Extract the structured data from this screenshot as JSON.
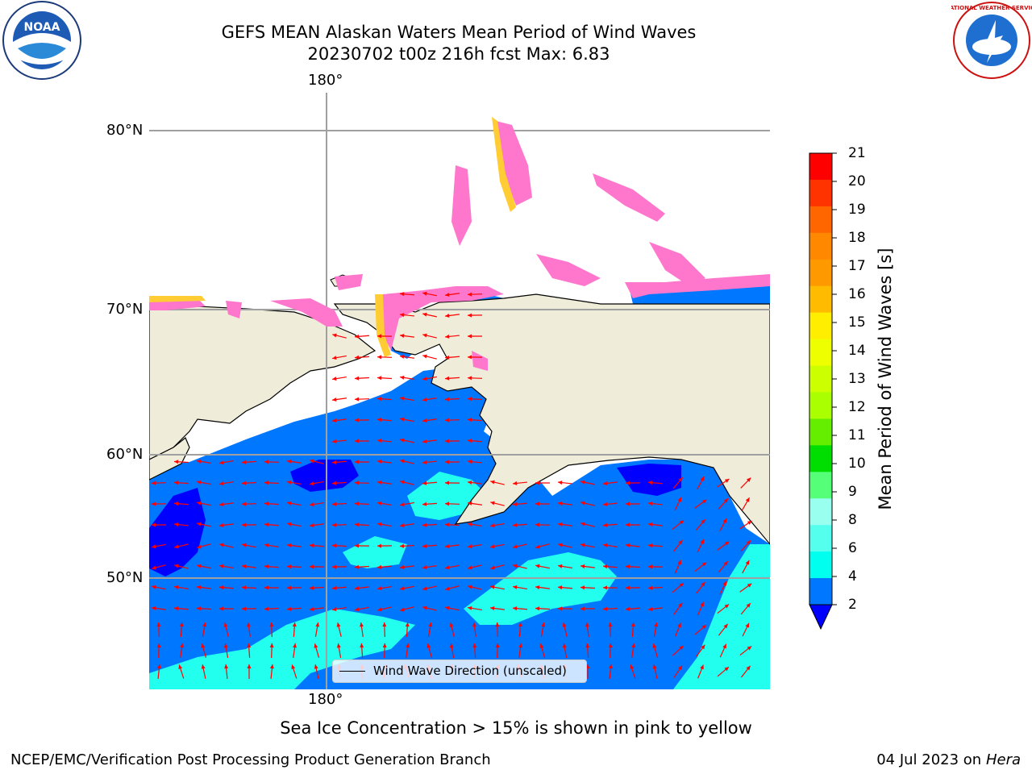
{
  "title": {
    "line1": "GEFS MEAN Alaskan Waters Mean Period of Wind Waves",
    "line2": "20230702 t00z 216h fcst   Max: 6.83"
  },
  "axes": {
    "top_lon_label": "180°",
    "bottom_lon_label": "180°",
    "lat_labels": [
      "80°N",
      "70°N",
      "60°N",
      "50°N"
    ]
  },
  "legend": {
    "entry": "Wind Wave Direction (unscaled)"
  },
  "colorbar": {
    "label": "Mean Period of Wind Waves [s]",
    "ticks": [
      "21",
      "20",
      "19",
      "18",
      "17",
      "16",
      "15",
      "14",
      "13",
      "12",
      "11",
      "10",
      "9",
      "8",
      "6",
      "4",
      "2"
    ],
    "colors": [
      "#ff0000",
      "#ff3300",
      "#ff6600",
      "#ff8800",
      "#ff9900",
      "#ffbb00",
      "#ffee00",
      "#eeff00",
      "#ccff00",
      "#aaff00",
      "#66ee00",
      "#00dd00",
      "#55ff77",
      "#99ffee",
      "#55ffee",
      "#00ffee",
      "#0077ff"
    ],
    "under_color": "#0000ff"
  },
  "map_colors": {
    "land": "#efedda",
    "ocean_2_4": "#0077ff",
    "ocean_4_6": "#22ffee",
    "ocean_below_2": "#0000ff",
    "ice_pink": "#ff77cc",
    "ice_yellow": "#ffcc33",
    "arrow": "#ff0000"
  },
  "note": "Sea Ice Concentration > 15% is shown in pink to yellow",
  "footer": {
    "left": "NCEP/EMC/Verification Post Processing Product Generation Branch",
    "right_date": "04 Jul 2023 on ",
    "right_host": "Hera"
  },
  "logos": {
    "left": "NOAA",
    "right": "NATIONAL WEATHER SERVICE"
  }
}
